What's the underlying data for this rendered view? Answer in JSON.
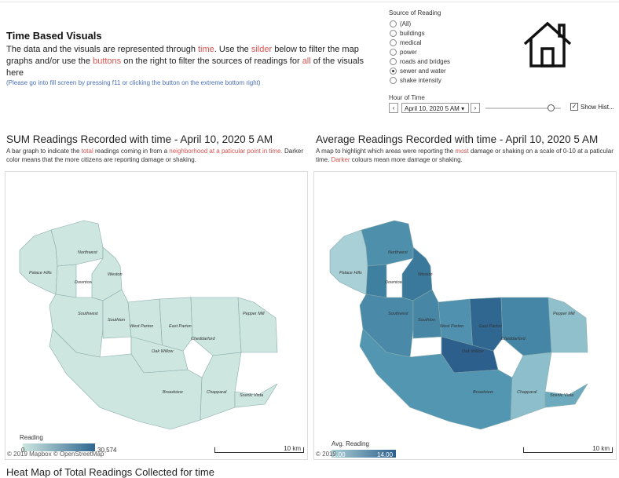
{
  "header": {
    "title": "Time Based Visuals",
    "intro": [
      {
        "text": "The data and the visuals are represented through ",
        "hl": false
      },
      {
        "text": "time",
        "hl": true
      },
      {
        "text": ". Use the ",
        "hl": false
      },
      {
        "text": "silder",
        "hl": true
      },
      {
        "text": " below to filter the map graphs and/or use the ",
        "hl": false
      },
      {
        "text": "buttons",
        "hl": true
      },
      {
        "text": " on the right to filter the sources of readings for ",
        "hl": false
      },
      {
        "text": "all",
        "hl": true
      },
      {
        "text": " of the visuals here",
        "hl": false
      }
    ],
    "hint": "(Please go into fill screen by pressing f11 or clicking the button on the extreme bottom right)"
  },
  "source_filter": {
    "title": "Source of Reading",
    "options": [
      {
        "label": "(All)",
        "selected": false
      },
      {
        "label": "buildings",
        "selected": false
      },
      {
        "label": "medical",
        "selected": false
      },
      {
        "label": "power",
        "selected": false
      },
      {
        "label": "roads and bridges",
        "selected": false
      },
      {
        "label": "sewer and water",
        "selected": true
      },
      {
        "label": "shake intensity",
        "selected": false
      }
    ]
  },
  "hour_filter": {
    "title": "Hour of Time",
    "value": "April 10, 2020 5 AM",
    "show_history": "Show Hist..."
  },
  "left_map": {
    "title": "SUM Readings Recorded with time - April 10, 2020 5 AM",
    "desc": [
      {
        "text": "A bar graph to indicate the ",
        "hl": false
      },
      {
        "text": "total",
        "hl": true
      },
      {
        "text": " readings coming in from a ",
        "hl": false
      },
      {
        "text": "neighborhood at a paticular point in time.",
        "hl": true
      },
      {
        "text": " Darker color means  that the more citizens are reporting damage or shaking.",
        "hl": false
      }
    ],
    "legend_title": "Reading",
    "legend_min": "0",
    "legend_max": "30,574",
    "credit": "© 2019 Mapbox © OpenStreetMap",
    "scale": "10 km"
  },
  "right_map": {
    "title": "Average Readings Recorded with time - April 10, 2020 5 AM",
    "desc": [
      {
        "text": "A map to highlight which areas were reporting the ",
        "hl": false
      },
      {
        "text": "most",
        "hl": true
      },
      {
        "text": " damage or shaking on a scale of 0-10 at a paticular time. ",
        "hl": false
      },
      {
        "text": "Darker",
        "hl": true
      },
      {
        "text": " colours mean more damage or shaking.",
        "hl": false
      }
    ],
    "legend_title": "Avg. Reading",
    "legend_min": "0.00",
    "legend_max": "14.00",
    "credit": "© 2019",
    "scale": "10 km"
  },
  "neighborhoods": [
    "Palace Hills",
    "Northwest",
    "Downtown",
    "Weston",
    "Southwest",
    "Southton",
    "West Parton",
    "East Parton",
    "Oak Willow",
    "Cheddarford",
    "Pepper Mill",
    "Broadview",
    "Chapparal",
    "Scenic Vista"
  ],
  "colors": {
    "sum_fill": "#cde6df",
    "avg": {
      "Palace Hills": "#a9d0d6",
      "Northwest": "#4e8fab",
      "Downtown": "#3f7fa0",
      "Weston": "#3a789c",
      "Southwest": "#4a8aa8",
      "Southton": "#4886a6",
      "West Parton": "#4f91ae",
      "East Parton": "#2f6791",
      "Oak Willow": "#2c5f8c",
      "Cheddarford": "#4585a5",
      "Pepper Mill": "#90c0cc",
      "Broadview": "#5296b2",
      "Chapparal": "#8cbfcb",
      "Scenic Vista": "#6eaabe"
    }
  },
  "bottom_title": "Heat Map of Total Readings Collected for time"
}
